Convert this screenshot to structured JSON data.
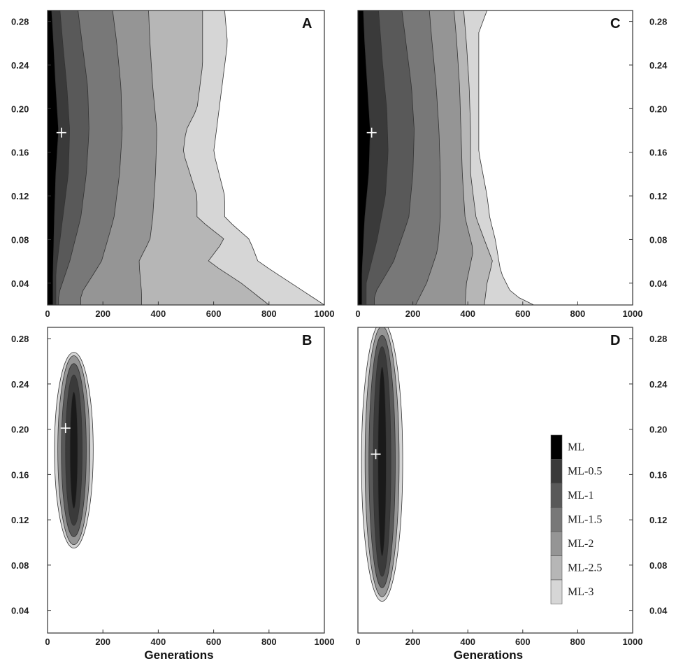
{
  "chart_data": [
    {
      "type": "heatmap",
      "panel": "A",
      "xlabel": "",
      "xlim": [
        0,
        1000
      ],
      "ylim": [
        0.02,
        0.29
      ],
      "x_ticks": [
        0,
        200,
        400,
        600,
        800,
        1000
      ],
      "y_ticks": [
        0.04,
        0.08,
        0.12,
        0.16,
        0.2,
        0.24,
        0.28
      ],
      "y_axis_side": "left",
      "max_likelihood_point": {
        "x": 50,
        "y": 0.178
      },
      "contour_levels": [
        {
          "label": "ML",
          "color": "#000000",
          "x_min": 0,
          "x_max_by_y": [
            [
              0.05,
              20
            ],
            [
              0.1,
              25
            ],
            [
              0.14,
              30
            ],
            [
              0.18,
              40
            ],
            [
              0.22,
              30
            ],
            [
              0.26,
              22
            ],
            [
              0.29,
              15
            ]
          ]
        },
        {
          "label": "ML-0.5",
          "color": "#3a3a3a",
          "x_min": 0,
          "x_max_by_y": [
            [
              0.05,
              30
            ],
            [
              0.1,
              55
            ],
            [
              0.14,
              75
            ],
            [
              0.18,
              80
            ],
            [
              0.22,
              70
            ],
            [
              0.26,
              55
            ],
            [
              0.29,
              45
            ]
          ]
        },
        {
          "label": "ML-1",
          "color": "#595959",
          "x_min": 0,
          "x_max_by_y": [
            [
              0.03,
              40
            ],
            [
              0.06,
              80
            ],
            [
              0.1,
              120
            ],
            [
              0.14,
              140
            ],
            [
              0.18,
              150
            ],
            [
              0.22,
              145
            ],
            [
              0.26,
              125
            ],
            [
              0.29,
              110
            ]
          ]
        },
        {
          "label": "ML-1.5",
          "color": "#787878",
          "x_min": 0,
          "x_max_by_y": [
            [
              0.03,
              120
            ],
            [
              0.06,
              195
            ],
            [
              0.1,
              240
            ],
            [
              0.14,
              260
            ],
            [
              0.18,
              270
            ],
            [
              0.22,
              265
            ],
            [
              0.26,
              250
            ],
            [
              0.29,
              235
            ]
          ]
        },
        {
          "label": "ML-2",
          "color": "#959595",
          "x_min": 0,
          "x_max_by_y": [
            [
              0.03,
              340
            ],
            [
              0.06,
              330
            ],
            [
              0.08,
              370
            ],
            [
              0.1,
              380
            ],
            [
              0.14,
              390
            ],
            [
              0.18,
              395
            ],
            [
              0.22,
              380
            ],
            [
              0.26,
              370
            ],
            [
              0.29,
              365
            ]
          ]
        },
        {
          "label": "ML-2.5",
          "color": "#b6b6b6",
          "x_min": 0,
          "x_max_by_y": [
            [
              0.02,
              800
            ],
            [
              0.04,
              700
            ],
            [
              0.06,
              580
            ],
            [
              0.08,
              640
            ],
            [
              0.1,
              540
            ],
            [
              0.12,
              540
            ],
            [
              0.16,
              490
            ],
            [
              0.18,
              500
            ],
            [
              0.2,
              540
            ],
            [
              0.24,
              560
            ],
            [
              0.26,
              560
            ],
            [
              0.29,
              560
            ]
          ]
        },
        {
          "label": "ML-3",
          "color": "#d6d6d6",
          "x_min": 0,
          "x_max_by_y": [
            [
              0.02,
              1000
            ],
            [
              0.04,
              880
            ],
            [
              0.06,
              760
            ],
            [
              0.08,
              730
            ],
            [
              0.1,
              640
            ],
            [
              0.12,
              640
            ],
            [
              0.16,
              600
            ],
            [
              0.2,
              620
            ],
            [
              0.24,
              640
            ],
            [
              0.26,
              650
            ],
            [
              0.29,
              640
            ]
          ]
        }
      ]
    },
    {
      "type": "heatmap",
      "panel": "B",
      "xlabel": "Generations",
      "xlim": [
        0,
        1000
      ],
      "ylim": [
        0.02,
        0.29
      ],
      "x_ticks": [
        0,
        200,
        400,
        600,
        800,
        1000
      ],
      "y_ticks": [
        0.04,
        0.08,
        0.12,
        0.16,
        0.2,
        0.24,
        0.28
      ],
      "y_axis_side": "left",
      "max_likelihood_point": {
        "x": 65,
        "y": 0.201
      },
      "blob": {
        "x_center": 95,
        "y_min": 0.095,
        "y_max": 0.268,
        "levels": [
          {
            "label": "ML-3",
            "color": "#d6d6d6",
            "half_width": 70,
            "y_pad": 0.0
          },
          {
            "label": "ML-2",
            "color": "#959595",
            "half_width": 58,
            "y_pad": 0.003
          },
          {
            "label": "ML-1",
            "color": "#595959",
            "half_width": 45,
            "y_pad": 0.01
          },
          {
            "label": "ML-0.5",
            "color": "#3a3a3a",
            "half_width": 30,
            "y_pad": 0.02
          },
          {
            "label": "ML",
            "color": "#1a1a1a",
            "half_width": 14,
            "y_pad": 0.035
          }
        ]
      }
    },
    {
      "type": "heatmap",
      "panel": "C",
      "xlabel": "",
      "xlim": [
        0,
        1000
      ],
      "ylim": [
        0.02,
        0.29
      ],
      "x_ticks": [
        0,
        200,
        400,
        600,
        800,
        1000
      ],
      "y_ticks": [
        0.04,
        0.08,
        0.12,
        0.16,
        0.2,
        0.24,
        0.28
      ],
      "y_axis_side": "right",
      "max_likelihood_point": {
        "x": 50,
        "y": 0.178
      },
      "contour_levels": [
        {
          "label": "ML",
          "color": "#000000",
          "x_min": 0,
          "x_max_by_y": [
            [
              0.05,
              15
            ],
            [
              0.1,
              25
            ],
            [
              0.14,
              40
            ],
            [
              0.18,
              45
            ],
            [
              0.22,
              35
            ],
            [
              0.26,
              25
            ],
            [
              0.29,
              20
            ]
          ]
        },
        {
          "label": "ML-0.5",
          "color": "#3a3a3a",
          "x_min": 0,
          "x_max_by_y": [
            [
              0.04,
              30
            ],
            [
              0.08,
              70
            ],
            [
              0.12,
              100
            ],
            [
              0.16,
              110
            ],
            [
              0.2,
              105
            ],
            [
              0.24,
              90
            ],
            [
              0.29,
              75
            ]
          ]
        },
        {
          "label": "ML-1",
          "color": "#595959",
          "x_min": 0,
          "x_max_by_y": [
            [
              0.03,
              60
            ],
            [
              0.06,
              130
            ],
            [
              0.1,
              185
            ],
            [
              0.14,
              200
            ],
            [
              0.18,
              205
            ],
            [
              0.22,
              195
            ],
            [
              0.26,
              175
            ],
            [
              0.29,
              160
            ]
          ]
        },
        {
          "label": "ML-1.5",
          "color": "#787878",
          "x_min": 0,
          "x_max_by_y": [
            [
              0.02,
              210
            ],
            [
              0.04,
              250
            ],
            [
              0.07,
              290
            ],
            [
              0.1,
              300
            ],
            [
              0.14,
              300
            ],
            [
              0.18,
              295
            ],
            [
              0.22,
              285
            ],
            [
              0.26,
              270
            ],
            [
              0.29,
              260
            ]
          ]
        },
        {
          "label": "ML-2",
          "color": "#959595",
          "x_min": 0,
          "x_max_by_y": [
            [
              0.02,
              390
            ],
            [
              0.04,
              395
            ],
            [
              0.07,
              420
            ],
            [
              0.1,
              390
            ],
            [
              0.14,
              380
            ],
            [
              0.18,
              375
            ],
            [
              0.22,
              370
            ],
            [
              0.26,
              360
            ],
            [
              0.29,
              350
            ]
          ]
        },
        {
          "label": "ML-2.5",
          "color": "#b6b6b6",
          "x_min": 0,
          "x_max_by_y": [
            [
              0.02,
              460
            ],
            [
              0.04,
              470
            ],
            [
              0.06,
              490
            ],
            [
              0.1,
              430
            ],
            [
              0.14,
              410
            ],
            [
              0.18,
              410
            ],
            [
              0.22,
              405
            ],
            [
              0.26,
              395
            ],
            [
              0.29,
              385
            ]
          ]
        },
        {
          "label": "ML-3",
          "color": "#d6d6d6",
          "x_min": 0,
          "x_max_by_y": [
            [
              0.02,
              640
            ],
            [
              0.03,
              560
            ],
            [
              0.05,
              520
            ],
            [
              0.08,
              500
            ],
            [
              0.1,
              480
            ],
            [
              0.12,
              470
            ],
            [
              0.16,
              440
            ],
            [
              0.2,
              440
            ],
            [
              0.24,
              440
            ],
            [
              0.27,
              440
            ],
            [
              0.29,
              470
            ]
          ]
        }
      ]
    },
    {
      "type": "heatmap",
      "panel": "D",
      "xlabel": "Generations",
      "xlim": [
        0,
        1000
      ],
      "ylim": [
        0.02,
        0.29
      ],
      "x_ticks": [
        0,
        200,
        400,
        600,
        800,
        1000
      ],
      "y_ticks": [
        0.04,
        0.08,
        0.12,
        0.16,
        0.2,
        0.24,
        0.28
      ],
      "y_axis_side": "right",
      "max_likelihood_point": {
        "x": 65,
        "y": 0.178
      },
      "blob": {
        "x_center": 88,
        "y_min": 0.048,
        "y_max": 0.295,
        "levels": [
          {
            "label": "ML-3",
            "color": "#d6d6d6",
            "half_width": 75,
            "y_pad": 0.0
          },
          {
            "label": "ML-2",
            "color": "#959595",
            "half_width": 62,
            "y_pad": 0.004
          },
          {
            "label": "ML-1",
            "color": "#595959",
            "half_width": 48,
            "y_pad": 0.012
          },
          {
            "label": "ML-0.5",
            "color": "#3a3a3a",
            "half_width": 32,
            "y_pad": 0.022
          },
          {
            "label": "ML",
            "color": "#1a1a1a",
            "half_width": 15,
            "y_pad": 0.04
          }
        ]
      }
    }
  ],
  "legend": [
    {
      "label": "ML",
      "color": "#000000"
    },
    {
      "label": "ML-0.5",
      "color": "#3a3a3a"
    },
    {
      "label": "ML-1",
      "color": "#595959"
    },
    {
      "label": "ML-1.5",
      "color": "#787878"
    },
    {
      "label": "ML-2",
      "color": "#959595"
    },
    {
      "label": "ML-2.5",
      "color": "#b6b6b6"
    },
    {
      "label": "ML-3",
      "color": "#d6d6d6"
    }
  ]
}
